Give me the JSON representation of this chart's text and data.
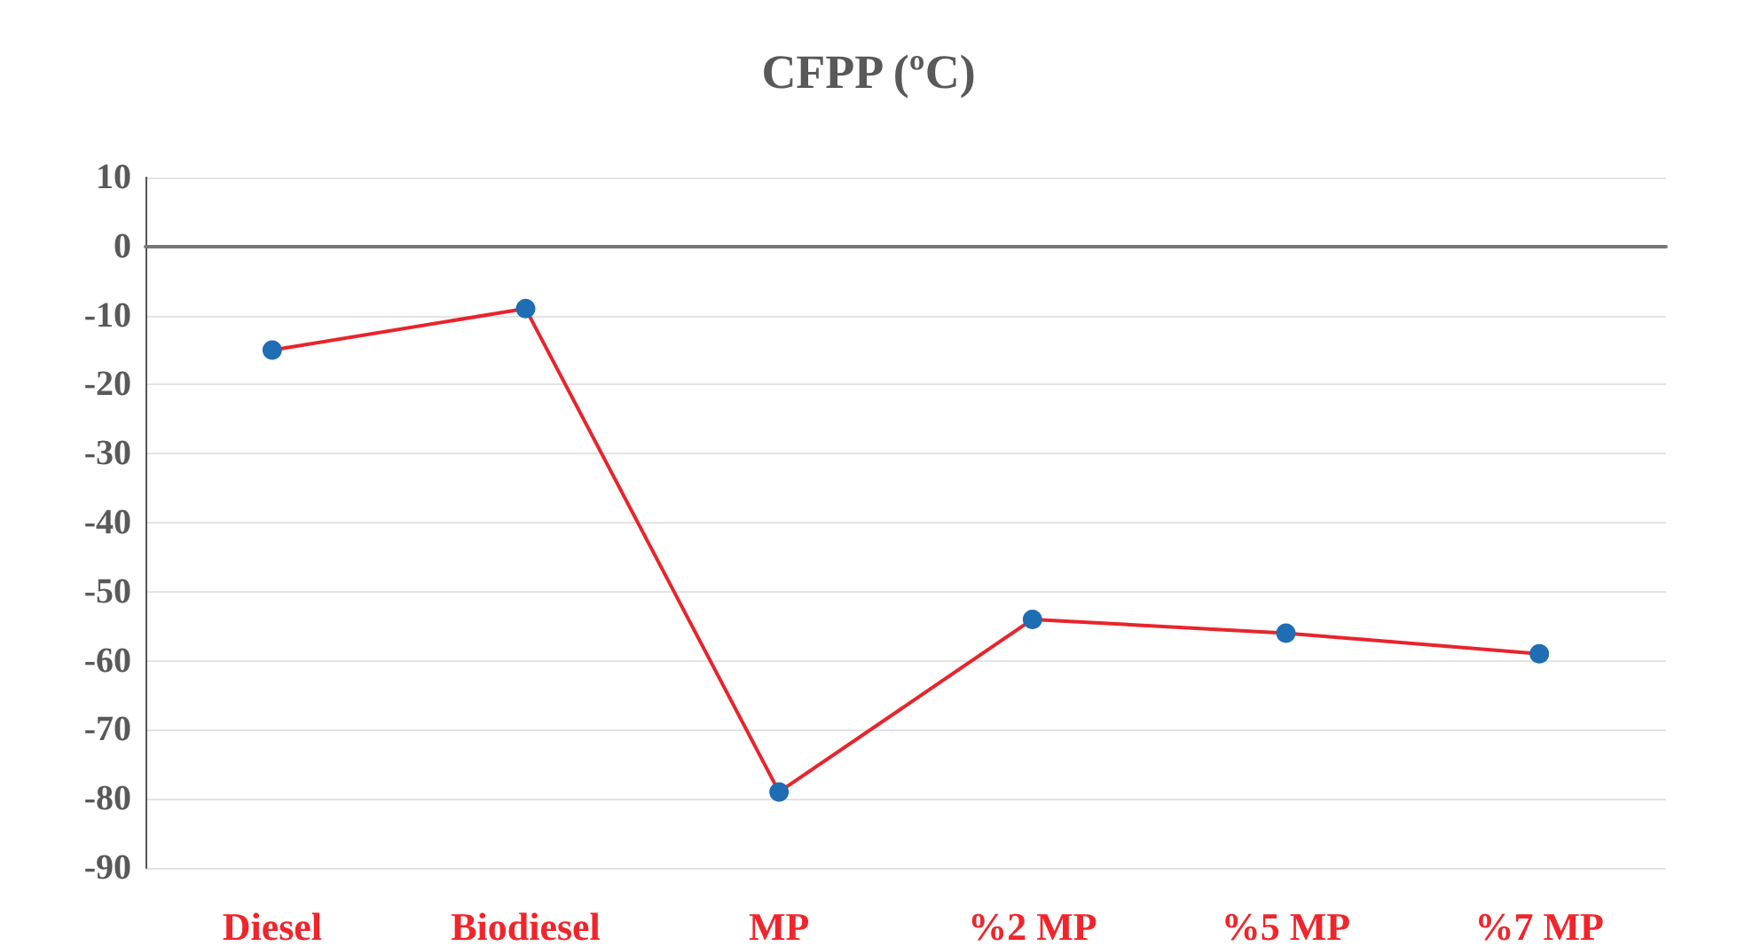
{
  "chart_data": {
    "type": "line",
    "title": "CFPP (ºC)",
    "categories": [
      "Diesel",
      "Biodiesel",
      "MP",
      "%2 MP",
      "%5 MP",
      "%7 MP"
    ],
    "series": [
      {
        "color": "#e8242c",
        "colors": [
          "#1f6db3",
          "#1f6db3",
          "#1f6db3",
          "#1f6db3",
          "#1f6db3",
          "#1f6db3"
        ],
        "values": [
          -15,
          -9,
          -79,
          -54,
          -56,
          -59
        ]
      }
    ],
    "ylim": [
      -90,
      10
    ],
    "yticks": [
      -90,
      -80,
      -70,
      -60,
      -50,
      -40,
      -30,
      -20,
      -10,
      0,
      10
    ],
    "grid": "y",
    "marker": "circle",
    "line_style": "solid"
  }
}
